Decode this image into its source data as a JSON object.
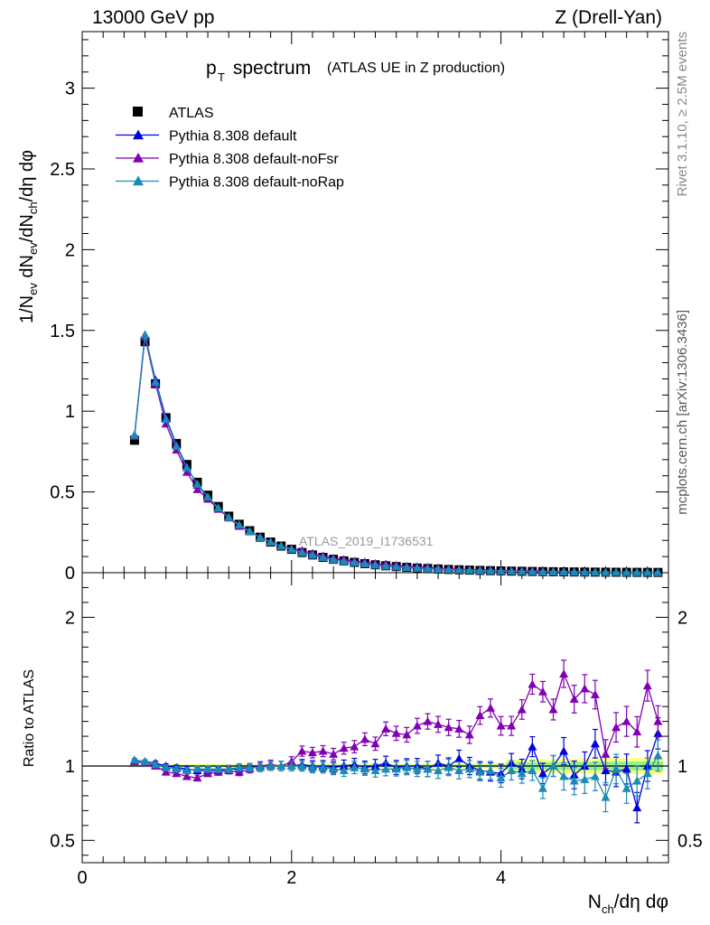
{
  "header": {
    "left": "13000 GeV pp",
    "right": "Z (Drell-Yan)"
  },
  "side": {
    "rivet": "Rivet 3.1.10, ≥ 2.5M events",
    "mcplots": "mcplots.cern.ch [arXiv:1306.3436]"
  },
  "chart_data": {
    "type": "scatter",
    "title_main": "p",
    "title_sub": "T",
    "title_rest": " spectrum",
    "title_paren": "(ATLAS UE in Z production)",
    "analysis": "ATLAS_2019_I1736531",
    "ylabel_main": "1/N_ev dN_ev/dN_ch/dη dφ",
    "ylabel_ratio": "Ratio to ATLAS",
    "xlabel": "N_ch/dη dφ",
    "xlim": [
      0,
      5.6
    ],
    "ylim": [
      0,
      3.35
    ],
    "ratio_ylim": [
      0.35,
      2.3
    ],
    "yticks": [
      "0",
      "0.5",
      "1",
      "1.5",
      "2",
      "2.5",
      "3"
    ],
    "ratio_yticks": [
      "0.5",
      "1",
      "2"
    ],
    "xticks": [
      "0",
      "2",
      "4"
    ],
    "colors": {
      "atlas": "#000000",
      "default": "#0000dd",
      "noFsr": "#8200b4",
      "noRap": "#1a8cb4",
      "band_outer": "#ffff80",
      "band_inner": "#90ee90"
    },
    "x": [
      0.5,
      0.6,
      0.7,
      0.8,
      0.9,
      1.0,
      1.1,
      1.2,
      1.3,
      1.4,
      1.5,
      1.6,
      1.7,
      1.8,
      1.9,
      2.0,
      2.1,
      2.2,
      2.3,
      2.4,
      2.5,
      2.6,
      2.7,
      2.8,
      2.9,
      3.0,
      3.1,
      3.2,
      3.3,
      3.4,
      3.5,
      3.6,
      3.7,
      3.8,
      3.9,
      4.0,
      4.1,
      4.2,
      4.3,
      4.4,
      4.5,
      4.6,
      4.7,
      4.8,
      4.9,
      5.0,
      5.1,
      5.2,
      5.3,
      5.4,
      5.5
    ],
    "atlas_values": [
      0.82,
      1.43,
      1.17,
      0.96,
      0.8,
      0.67,
      0.56,
      0.48,
      0.41,
      0.35,
      0.3,
      0.26,
      0.22,
      0.19,
      0.165,
      0.145,
      0.125,
      0.11,
      0.095,
      0.083,
      0.073,
      0.064,
      0.056,
      0.049,
      0.043,
      0.038,
      0.033,
      0.029,
      0.026,
      0.023,
      0.02,
      0.018,
      0.016,
      0.014,
      0.0125,
      0.011,
      0.0098,
      0.0087,
      0.0077,
      0.0068,
      0.006,
      0.0053,
      0.0047,
      0.0042,
      0.0037,
      0.0033,
      0.0029,
      0.0026,
      0.0023,
      0.002,
      0.0018
    ],
    "series": [
      {
        "name": "ATLAS",
        "key": "atlas"
      },
      {
        "name": "Pythia 8.308 default",
        "key": "default",
        "ratio": [
          1.04,
          1.03,
          1.02,
          1.0,
          0.99,
          0.98,
          0.97,
          0.97,
          0.97,
          0.98,
          0.98,
          0.99,
          1.0,
          1.0,
          1.0,
          1.0,
          1.01,
          1.0,
          1.0,
          0.99,
          1.0,
          1.01,
          0.99,
          1.0,
          1.02,
          0.99,
          1.0,
          1.0,
          0.98,
          1.02,
          1.0,
          1.05,
          1.0,
          0.97,
          0.96,
          0.95,
          1.02,
          0.98,
          1.13,
          0.95,
          1.0,
          1.1,
          0.94,
          1.0,
          1.15,
          0.97,
          0.96,
          0.98,
          0.72,
          1.0,
          1.22
        ]
      },
      {
        "name": "Pythia 8.308 default-noFsr",
        "key": "noFsr",
        "ratio": [
          1.03,
          1.02,
          1.0,
          0.96,
          0.95,
          0.93,
          0.92,
          0.95,
          0.96,
          0.97,
          0.96,
          0.98,
          1.0,
          1.01,
          1.0,
          1.03,
          1.1,
          1.09,
          1.1,
          1.08,
          1.12,
          1.13,
          1.18,
          1.15,
          1.25,
          1.22,
          1.21,
          1.27,
          1.3,
          1.28,
          1.26,
          1.25,
          1.21,
          1.34,
          1.39,
          1.27,
          1.27,
          1.38,
          1.55,
          1.5,
          1.38,
          1.62,
          1.45,
          1.52,
          1.48,
          1.08,
          1.26,
          1.3,
          1.23,
          1.54,
          1.3
        ]
      },
      {
        "name": "Pythia 8.308 default-noRap",
        "key": "noRap",
        "ratio": [
          1.04,
          1.03,
          1.01,
          0.99,
          0.98,
          0.97,
          0.98,
          0.98,
          0.98,
          0.98,
          0.99,
          0.99,
          0.99,
          1.0,
          1.0,
          1.0,
          1.0,
          0.99,
          0.99,
          0.98,
          0.97,
          0.99,
          0.98,
          0.97,
          0.98,
          0.98,
          0.99,
          0.98,
          0.98,
          0.97,
          0.99,
          0.97,
          0.98,
          0.96,
          0.97,
          0.92,
          0.97,
          0.95,
          0.97,
          0.85,
          1.0,
          0.93,
          0.9,
          0.91,
          0.93,
          0.79,
          0.98,
          0.85,
          0.9,
          0.95,
          1.07
        ]
      }
    ]
  }
}
